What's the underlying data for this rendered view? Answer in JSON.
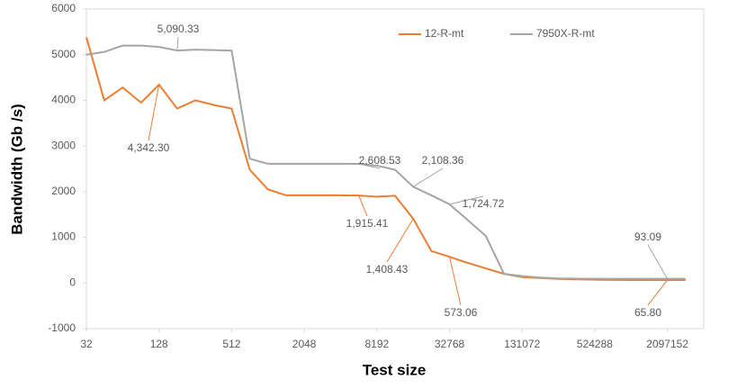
{
  "chart_data": {
    "type": "line",
    "x": [
      32,
      45,
      64,
      91,
      128,
      181,
      256,
      362,
      512,
      724,
      1024,
      1448,
      2048,
      2896,
      4096,
      5793,
      8192,
      11585,
      16384,
      23170,
      32768,
      46341,
      65536,
      92682,
      131072,
      185364,
      262144,
      370728,
      524288,
      741455,
      1048576,
      1482910,
      2097152,
      2965821
    ],
    "xlabel": "Test size",
    "ylabel": "Bandwidth (Gb /s)",
    "xscale": "log2",
    "xlim": [
      32,
      4194304
    ],
    "xticks": [
      32,
      128,
      512,
      2048,
      8192,
      32768,
      131072,
      524288,
      2097152
    ],
    "ylim": [
      -1000,
      6000
    ],
    "yticks": [
      -1000,
      0,
      1000,
      2000,
      3000,
      4000,
      5000,
      6000
    ],
    "legend": "top-right",
    "series": [
      {
        "name": "12-R-mt",
        "color": "#ed7d31",
        "values": [
          5380,
          4000,
          4280,
          3950,
          4342.3,
          3820,
          4000,
          3900,
          3820,
          2480,
          2050,
          1920,
          1920,
          1920,
          1920,
          1915.41,
          1890,
          1910,
          1408.43,
          700,
          573.06,
          440,
          320,
          200,
          130,
          110,
          90,
          80,
          72,
          68,
          66,
          66,
          65.8,
          65.8
        ],
        "value_labels": [
          null,
          null,
          null,
          null,
          "4,342.30",
          null,
          null,
          null,
          null,
          null,
          null,
          null,
          null,
          null,
          null,
          "1,915.41",
          null,
          null,
          "1,408.43",
          null,
          "573.06",
          null,
          null,
          null,
          null,
          null,
          null,
          null,
          null,
          null,
          null,
          null,
          "65.80",
          null
        ]
      },
      {
        "name": "7950X-R-mt",
        "color": "#a5a5a5",
        "values": [
          5000,
          5060,
          5200,
          5200,
          5170,
          5090.33,
          5110,
          5100,
          5090,
          2720,
          2610,
          2610,
          2610,
          2610,
          2610,
          2608.53,
          2570,
          2480,
          2108.36,
          1920,
          1724.72,
          1380,
          1030,
          200,
          150,
          120,
          100,
          95,
          93,
          93,
          93,
          93,
          93.09,
          93.09
        ],
        "value_labels": [
          null,
          null,
          null,
          null,
          null,
          "5,090.33",
          null,
          null,
          null,
          null,
          null,
          null,
          null,
          null,
          null,
          "2,608.53",
          null,
          null,
          "2,108.36",
          null,
          "1,724.72",
          null,
          null,
          null,
          null,
          null,
          null,
          null,
          null,
          null,
          null,
          null,
          "93.09",
          null
        ]
      }
    ]
  }
}
